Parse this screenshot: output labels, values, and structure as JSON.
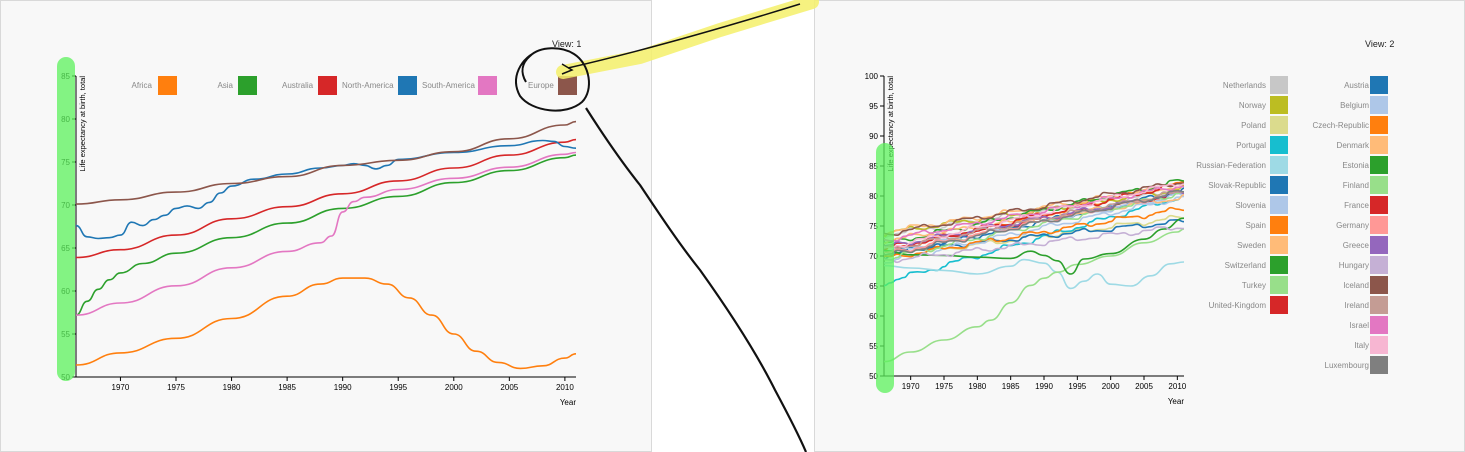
{
  "views": [
    {
      "label": "View: 1"
    },
    {
      "label": "View: 2"
    }
  ],
  "chart_data": [
    {
      "type": "line",
      "xlabel": "Year",
      "ylabel": "Life expectancy at birth, total",
      "xlim": [
        1966,
        2011
      ],
      "ylim": [
        50,
        85
      ],
      "xticks": [
        "1970",
        "1975",
        "1980",
        "1985",
        "1990",
        "1995",
        "2000",
        "2005",
        "2010"
      ],
      "yticks": [
        "50",
        "55",
        "60",
        "65",
        "70",
        "75",
        "80",
        "85"
      ],
      "legend_position": "top",
      "series": [
        {
          "name": "Africa",
          "color": "#ff7f0e",
          "points": [
            [
              1966,
              51.4
            ],
            [
              1970,
              52.8
            ],
            [
              1975,
              54.5
            ],
            [
              1980,
              56.8
            ],
            [
              1985,
              59.4
            ],
            [
              1988,
              60.8
            ],
            [
              1990,
              61.5
            ],
            [
              1992,
              61.5
            ],
            [
              1994,
              60.8
            ],
            [
              1996,
              59.2
            ],
            [
              1998,
              57.2
            ],
            [
              2000,
              55.0
            ],
            [
              2002,
              53.0
            ],
            [
              2004,
              51.7
            ],
            [
              2006,
              51.0
            ],
            [
              2008,
              51.3
            ],
            [
              2010,
              52.2
            ],
            [
              2011,
              52.7
            ]
          ]
        },
        {
          "name": "Asia",
          "color": "#2ca02c",
          "points": [
            [
              1966,
              57.2
            ],
            [
              1967,
              58.8
            ],
            [
              1968,
              60.2
            ],
            [
              1969,
              61.3
            ],
            [
              1970,
              62.1
            ],
            [
              1972,
              63.2
            ],
            [
              1975,
              64.4
            ],
            [
              1980,
              66.2
            ],
            [
              1985,
              67.9
            ],
            [
              1990,
              69.6
            ],
            [
              1995,
              71.0
            ],
            [
              2000,
              72.6
            ],
            [
              2005,
              74.0
            ],
            [
              2010,
              75.5
            ],
            [
              2011,
              75.8
            ]
          ]
        },
        {
          "name": "Australia",
          "color": "#d62728",
          "points": [
            [
              1966,
              63.9
            ],
            [
              1970,
              64.8
            ],
            [
              1975,
              66.5
            ],
            [
              1980,
              68.4
            ],
            [
              1985,
              69.8
            ],
            [
              1990,
              71.3
            ],
            [
              1995,
              72.8
            ],
            [
              2000,
              74.3
            ],
            [
              2005,
              75.8
            ],
            [
              2010,
              77.3
            ],
            [
              2011,
              77.6
            ]
          ]
        },
        {
          "name": "North-America",
          "color": "#1f77b4",
          "points": [
            [
              1966,
              67.6
            ],
            [
              1967,
              66.3
            ],
            [
              1968,
              66.1
            ],
            [
              1969,
              66.2
            ],
            [
              1970,
              66.5
            ],
            [
              1971,
              68.0
            ],
            [
              1972,
              67.6
            ],
            [
              1973,
              68.3
            ],
            [
              1974,
              68.8
            ],
            [
              1975,
              69.6
            ],
            [
              1976,
              69.9
            ],
            [
              1977,
              69.6
            ],
            [
              1978,
              70.3
            ],
            [
              1979,
              71.4
            ],
            [
              1980,
              72.2
            ],
            [
              1982,
              73.0
            ],
            [
              1985,
              73.6
            ],
            [
              1988,
              74.3
            ],
            [
              1990,
              74.6
            ],
            [
              1991,
              74.8
            ],
            [
              1992,
              74.6
            ],
            [
              1993,
              74.2
            ],
            [
              1994,
              74.6
            ],
            [
              1995,
              75.3
            ],
            [
              2000,
              76.1
            ],
            [
              2005,
              76.9
            ],
            [
              2008,
              77.5
            ],
            [
              2009,
              77.4
            ],
            [
              2010,
              76.8
            ],
            [
              2011,
              76.6
            ]
          ]
        },
        {
          "name": "South-America",
          "color": "#e377c2",
          "points": [
            [
              1966,
              57.2
            ],
            [
              1970,
              58.6
            ],
            [
              1975,
              60.6
            ],
            [
              1980,
              62.7
            ],
            [
              1985,
              64.6
            ],
            [
              1988,
              65.6
            ],
            [
              1989,
              66.4
            ],
            [
              1990,
              69.2
            ],
            [
              1991,
              70.4
            ],
            [
              1992,
              70.9
            ],
            [
              1995,
              71.8
            ],
            [
              2000,
              73.1
            ],
            [
              2005,
              74.4
            ],
            [
              2010,
              75.9
            ],
            [
              2011,
              76.1
            ]
          ]
        },
        {
          "name": "Europe",
          "color": "#8c564b",
          "points": [
            [
              1966,
              70.1
            ],
            [
              1970,
              70.6
            ],
            [
              1975,
              71.5
            ],
            [
              1980,
              72.5
            ],
            [
              1985,
              73.3
            ],
            [
              1990,
              74.6
            ],
            [
              1995,
              75.2
            ],
            [
              2000,
              76.2
            ],
            [
              2005,
              77.7
            ],
            [
              2010,
              79.3
            ],
            [
              2011,
              79.7
            ]
          ]
        }
      ]
    },
    {
      "type": "line",
      "xlabel": "Year",
      "ylabel": "Life expectancy at birth, total",
      "xlim": [
        1966,
        2011
      ],
      "ylim": [
        50,
        100
      ],
      "xticks": [
        "1970",
        "1975",
        "1980",
        "1985",
        "1990",
        "1995",
        "2000",
        "2005",
        "2010"
      ],
      "yticks": [
        "50",
        "55",
        "60",
        "65",
        "70",
        "75",
        "80",
        "85",
        "90",
        "95",
        "100"
      ],
      "legend_position": "right",
      "series": [
        {
          "name": "Netherlands",
          "color": "#c7c7c7",
          "start": 73.5,
          "end": 81.0
        },
        {
          "name": "Norway",
          "color": "#bcbd22",
          "start": 73.8,
          "end": 81.2
        },
        {
          "name": "Poland",
          "color": "#dbdb8d",
          "start": 69.8,
          "end": 76.5
        },
        {
          "name": "Portugal",
          "color": "#17becf",
          "start": 65.5,
          "end": 80.0
        },
        {
          "name": "Russian-Federation",
          "color": "#9edae5",
          "points": [
            [
              1966,
              68.4
            ],
            [
              1970,
              68.0
            ],
            [
              1975,
              67.6
            ],
            [
              1980,
              67.0
            ],
            [
              1985,
              68.3
            ],
            [
              1987,
              69.4
            ],
            [
              1990,
              68.8
            ],
            [
              1992,
              67.3
            ],
            [
              1994,
              64.6
            ],
            [
              1996,
              65.8
            ],
            [
              1998,
              67.0
            ],
            [
              2000,
              65.3
            ],
            [
              2003,
              65.0
            ],
            [
              2006,
              66.7
            ],
            [
              2009,
              68.7
            ],
            [
              2011,
              69.0
            ]
          ]
        },
        {
          "name": "Slovak-Republic",
          "color": "#1f77b4",
          "start": 70.6,
          "end": 75.8
        },
        {
          "name": "Slovenia",
          "color": "#aec7e8",
          "start": 69.0,
          "end": 79.8
        },
        {
          "name": "Spain",
          "color": "#ff7f0e",
          "start": 70.9,
          "end": 82.2
        },
        {
          "name": "Sweden",
          "color": "#ffbb78",
          "start": 74.0,
          "end": 81.8
        },
        {
          "name": "Switzerland",
          "color": "#2ca02c",
          "start": 72.0,
          "end": 82.6
        },
        {
          "name": "Turkey",
          "color": "#98df8a",
          "points": [
            [
              1966,
              52.4
            ],
            [
              1970,
              54.0
            ],
            [
              1975,
              56.0
            ],
            [
              1980,
              58.2
            ],
            [
              1982,
              59.3
            ],
            [
              1985,
              62.2
            ],
            [
              1988,
              65.1
            ],
            [
              1990,
              66.3
            ],
            [
              1992,
              67.3
            ],
            [
              1995,
              68.6
            ],
            [
              2000,
              70.0
            ],
            [
              2005,
              72.2
            ],
            [
              2010,
              74.0
            ],
            [
              2011,
              74.5
            ]
          ]
        },
        {
          "name": "United-Kingdom",
          "color": "#d62728",
          "start": 71.3,
          "end": 80.5
        },
        {
          "name": "Austria",
          "color": "#1f77b4",
          "start": 70.0,
          "end": 80.9
        },
        {
          "name": "Belgium",
          "color": "#aec7e8",
          "start": 70.6,
          "end": 80.2
        },
        {
          "name": "Czech-Republic",
          "color": "#ff7f0e",
          "start": 69.6,
          "end": 77.9
        },
        {
          "name": "Denmark",
          "color": "#ffbb78",
          "start": 72.6,
          "end": 79.8
        },
        {
          "name": "Estonia",
          "color": "#2ca02c",
          "points": [
            [
              1966,
              70.9
            ],
            [
              1970,
              70.2
            ],
            [
              1975,
              70.1
            ],
            [
              1980,
              69.8
            ],
            [
              1985,
              69.6
            ],
            [
              1988,
              70.8
            ],
            [
              1990,
              70.1
            ],
            [
              1992,
              69.2
            ],
            [
              1994,
              67.0
            ],
            [
              1996,
              69.5
            ],
            [
              2000,
              70.4
            ],
            [
              2005,
              72.8
            ],
            [
              2008,
              74.5
            ],
            [
              2011,
              76.3
            ]
          ]
        },
        {
          "name": "Finland",
          "color": "#98df8a",
          "start": 69.5,
          "end": 80.6
        },
        {
          "name": "France",
          "color": "#d62728",
          "start": 71.0,
          "end": 82.1
        },
        {
          "name": "Germany",
          "color": "#ff9896",
          "start": 70.3,
          "end": 80.7
        },
        {
          "name": "Greece",
          "color": "#9467bd",
          "start": 71.5,
          "end": 80.6
        },
        {
          "name": "Hungary",
          "color": "#c5b0d5",
          "start": 69.2,
          "end": 74.9
        },
        {
          "name": "Iceland",
          "color": "#8c564b",
          "start": 73.6,
          "end": 82.4
        },
        {
          "name": "Ireland",
          "color": "#c49c94",
          "start": 71.0,
          "end": 80.8
        },
        {
          "name": "Israel",
          "color": "#e377c2",
          "start": 72.6,
          "end": 81.8
        },
        {
          "name": "Italy",
          "color": "#f7b6d2",
          "start": 71.3,
          "end": 82.3
        },
        {
          "name": "Luxembourg",
          "color": "#7f7f7f",
          "start": 70.0,
          "end": 80.8
        }
      ]
    }
  ]
}
